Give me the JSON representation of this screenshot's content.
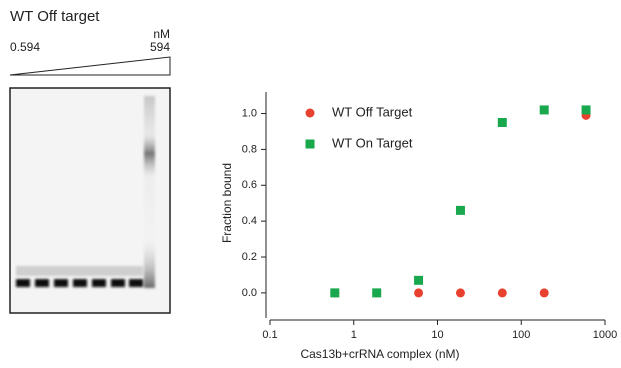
{
  "gel": {
    "title": "WT Off target",
    "unit": "nM",
    "low": "0.594",
    "high": "594"
  },
  "chart_data": {
    "type": "scatter",
    "x": [
      0.594,
      1.88,
      5.94,
      18.8,
      59.4,
      188,
      594
    ],
    "series": [
      {
        "name": "WT Off Target",
        "color": "#e8412f",
        "marker": "circle",
        "values": [
          0,
          0,
          0,
          0,
          0,
          0,
          0.99
        ]
      },
      {
        "name": "WT On Target",
        "color": "#1aa84f",
        "marker": "square",
        "values": [
          0,
          0,
          0.07,
          0.46,
          0.95,
          1.02,
          1.02
        ]
      }
    ],
    "xlabel": "Cas13b+crRNA complex (nM)",
    "ylabel": "Fraction bound",
    "xscale": "log",
    "xlim": [
      0.1,
      1000
    ],
    "xticks": [
      0.1,
      1,
      10,
      100,
      1000
    ],
    "ylim": [
      -0.14,
      1.12
    ],
    "yticks": [
      {
        "value": 0,
        "label": "0.0"
      },
      {
        "value": 0.2,
        "label": "0.2"
      },
      {
        "value": 0.4,
        "label": "0.4"
      },
      {
        "value": 0.6,
        "label": "0.6"
      },
      {
        "value": 0.8,
        "label": "0.8"
      },
      {
        "value": 1,
        "label": "1.0"
      }
    ],
    "legend": "upper left"
  }
}
